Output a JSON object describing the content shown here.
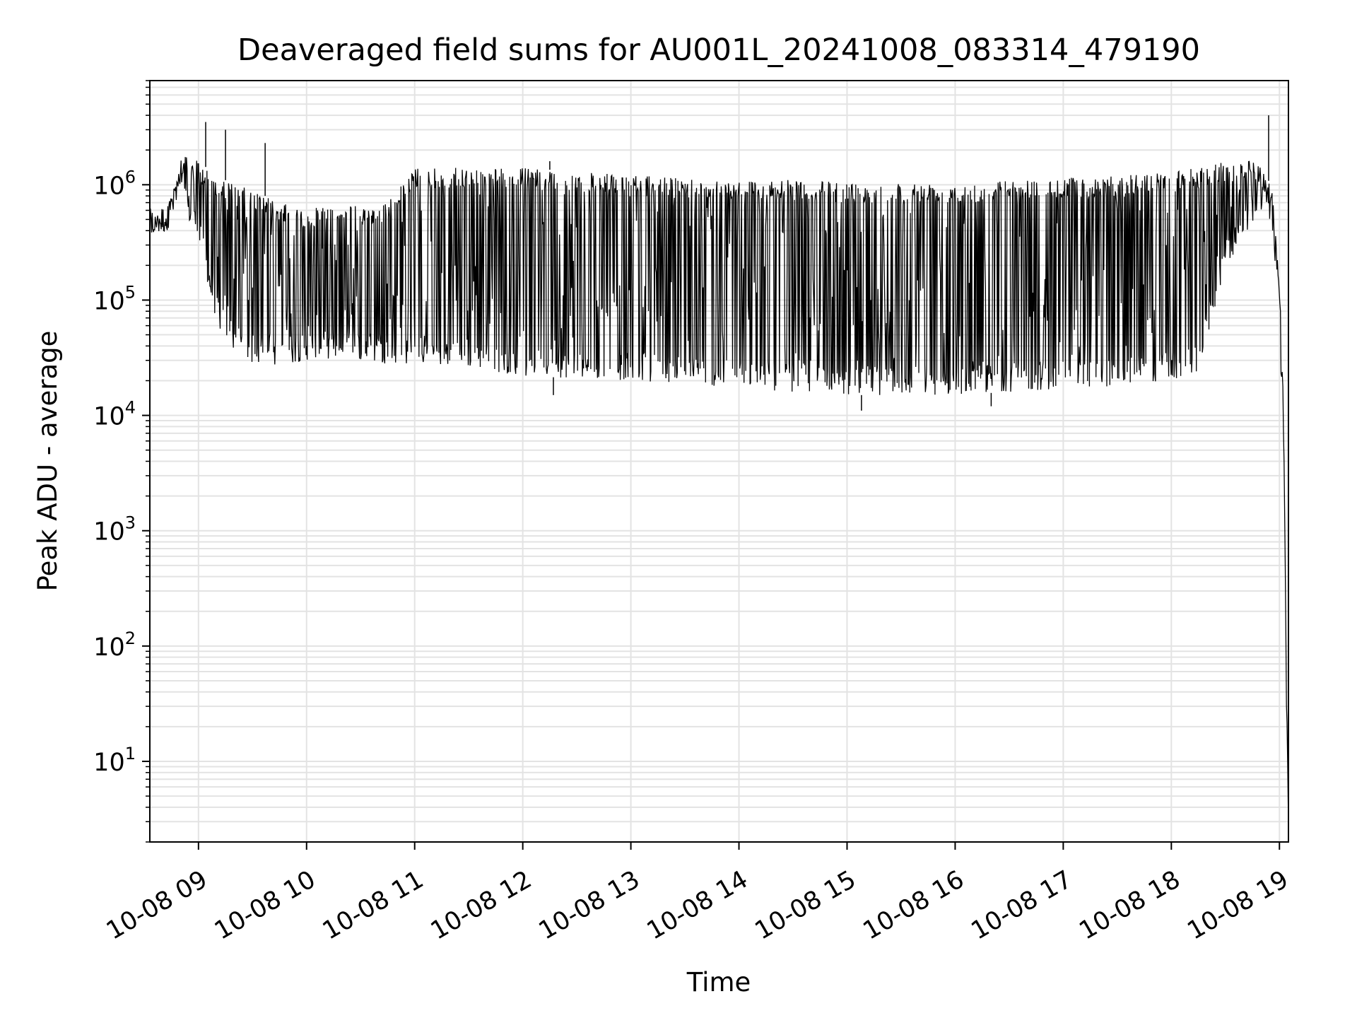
{
  "chart_data": {
    "type": "line",
    "title": "Deaveraged field sums for AU001L_20241008_083314_479190",
    "xlabel": "Time",
    "ylabel": "Peak ADU - average",
    "yscale": "log",
    "ylim": [
      2,
      8000000
    ],
    "xlim": [
      "2024-10-08 08:33",
      "2024-10-08 19:05"
    ],
    "grid": true,
    "line_color": "#000000",
    "grid_color": "#e3e3e3",
    "x_ticks": [
      {
        "t": "2024-10-08 09:00",
        "label": "10-08 09"
      },
      {
        "t": "2024-10-08 10:00",
        "label": "10-08 10"
      },
      {
        "t": "2024-10-08 11:00",
        "label": "10-08 11"
      },
      {
        "t": "2024-10-08 12:00",
        "label": "10-08 12"
      },
      {
        "t": "2024-10-08 13:00",
        "label": "10-08 13"
      },
      {
        "t": "2024-10-08 14:00",
        "label": "10-08 14"
      },
      {
        "t": "2024-10-08 15:00",
        "label": "10-08 15"
      },
      {
        "t": "2024-10-08 16:00",
        "label": "10-08 16"
      },
      {
        "t": "2024-10-08 17:00",
        "label": "10-08 17"
      },
      {
        "t": "2024-10-08 18:00",
        "label": "10-08 18"
      },
      {
        "t": "2024-10-08 19:00",
        "label": "10-08 19"
      }
    ],
    "y_ticks": [
      {
        "value": 10,
        "base": "10",
        "exp": "1"
      },
      {
        "value": 100,
        "base": "10",
        "exp": "2"
      },
      {
        "value": 1000,
        "base": "10",
        "exp": "3"
      },
      {
        "value": 10000,
        "base": "10",
        "exp": "4"
      },
      {
        "value": 100000,
        "base": "10",
        "exp": "5"
      },
      {
        "value": 1000000,
        "base": "10",
        "exp": "6"
      }
    ],
    "series": [
      {
        "style": "envelope",
        "x": [
          "2024-10-08 08:33",
          "2024-10-08 08:42",
          "2024-10-08 08:50",
          "2024-10-08 09:00",
          "2024-10-08 09:10",
          "2024-10-08 09:20",
          "2024-10-08 09:30",
          "2024-10-08 09:45",
          "2024-10-08 10:00",
          "2024-10-08 10:15",
          "2024-10-08 10:30",
          "2024-10-08 10:45",
          "2024-10-08 11:00",
          "2024-10-08 11:30",
          "2024-10-08 12:00",
          "2024-10-08 12:30",
          "2024-10-08 13:00",
          "2024-10-08 13:30",
          "2024-10-08 14:00",
          "2024-10-08 14:30",
          "2024-10-08 15:00",
          "2024-10-08 15:30",
          "2024-10-08 16:00",
          "2024-10-08 16:30",
          "2024-10-08 17:00",
          "2024-10-08 17:30",
          "2024-10-08 18:00",
          "2024-10-08 18:15",
          "2024-10-08 18:30",
          "2024-10-08 18:45",
          "2024-10-08 18:52",
          "2024-10-08 18:56",
          "2024-10-08 19:00",
          "2024-10-08 19:02",
          "2024-10-08 19:03",
          "2024-10-08 19:04",
          "2024-10-08 19:05"
        ],
        "y_high": [
          550000,
          600000,
          1800000,
          1600000,
          1200000,
          1000000,
          900000,
          700000,
          600000,
          700000,
          650000,
          700000,
          1400000,
          1400000,
          1400000,
          1300000,
          1200000,
          1150000,
          1100000,
          1100000,
          1050000,
          1050000,
          1050000,
          1100000,
          1150000,
          1200000,
          1300000,
          1400000,
          1600000,
          1700000,
          1300000,
          900000,
          150000,
          20000,
          1500,
          50,
          4
        ],
        "y_low": [
          350000,
          380000,
          700000,
          300000,
          60000,
          35000,
          28000,
          27000,
          30000,
          30000,
          30000,
          28000,
          28000,
          26000,
          22000,
          21000,
          20000,
          19000,
          17000,
          16000,
          15000,
          15000,
          15000,
          16000,
          17000,
          18000,
          20000,
          22000,
          200000,
          400000,
          700000,
          400000,
          80000,
          5000,
          500,
          20,
          3
        ]
      }
    ],
    "spikes": [
      {
        "t": "2024-10-08 09:04",
        "y": 3500000
      },
      {
        "t": "2024-10-08 09:15",
        "y": 3000000
      },
      {
        "t": "2024-10-08 09:37",
        "y": 2300000
      },
      {
        "t": "2024-10-08 12:15",
        "y": 1600000
      },
      {
        "t": "2024-10-08 18:54",
        "y": 4000000
      },
      {
        "t": "2024-10-08 12:17",
        "y": 15000
      },
      {
        "t": "2024-10-08 15:08",
        "y": 11000
      },
      {
        "t": "2024-10-08 16:20",
        "y": 12000
      }
    ]
  }
}
